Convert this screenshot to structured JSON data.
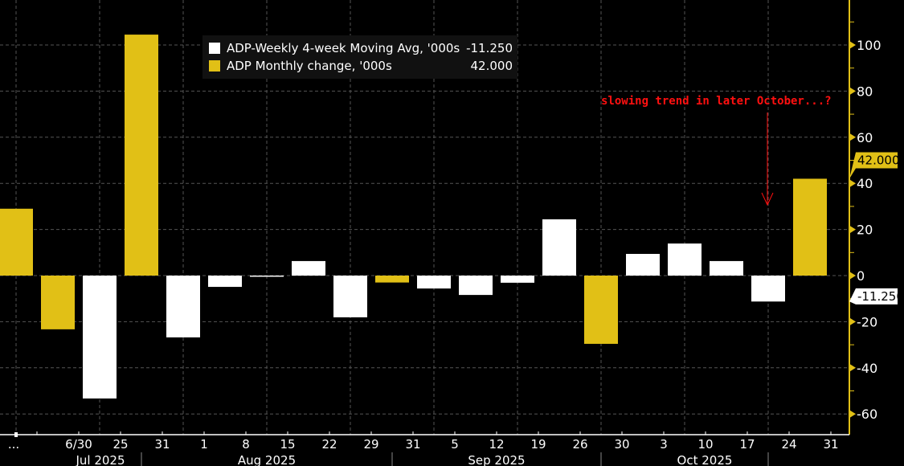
{
  "chart_data": {
    "type": "bar",
    "categories": [
      "...",
      "6/30",
      "25",
      "31",
      "1",
      "8",
      "15",
      "22",
      "29",
      "31",
      "5",
      "12",
      "19",
      "26",
      "30",
      "3",
      "10",
      "17",
      "24",
      "31"
    ],
    "month_labels": [
      "Jul 2025",
      "Aug 2025",
      "Sep 2025",
      "Oct 2025"
    ],
    "series": [
      {
        "name": "ADP-Weekly 4-week Moving Avg, '000s",
        "color": "#ffffff",
        "last_value": "-11.250",
        "values": [
          null,
          null,
          -53.3,
          null,
          -26.8,
          -4.9,
          -0.5,
          6.3,
          -18.1,
          null,
          -5.6,
          -8.4,
          -3.1,
          24.4,
          null,
          9.4,
          13.9,
          6.3,
          -11.25,
          null
        ]
      },
      {
        "name": "ADP Monthly change, '000s",
        "color": "#e1c016",
        "last_value": "42.000",
        "values": [
          29,
          -23.3,
          null,
          104.5,
          null,
          null,
          null,
          null,
          null,
          -3,
          null,
          null,
          null,
          null,
          -29.6,
          null,
          null,
          null,
          null,
          42
        ]
      }
    ],
    "yticks": [
      100,
      80,
      60,
      40,
      20,
      0,
      -20,
      -40,
      -60
    ],
    "ylim": [
      -68,
      120
    ],
    "y_axis_side": "right",
    "grid": true,
    "legend_placement": "top-left",
    "annotation": "slowing trend in later October...?",
    "annotation_color": "#ff1010"
  }
}
